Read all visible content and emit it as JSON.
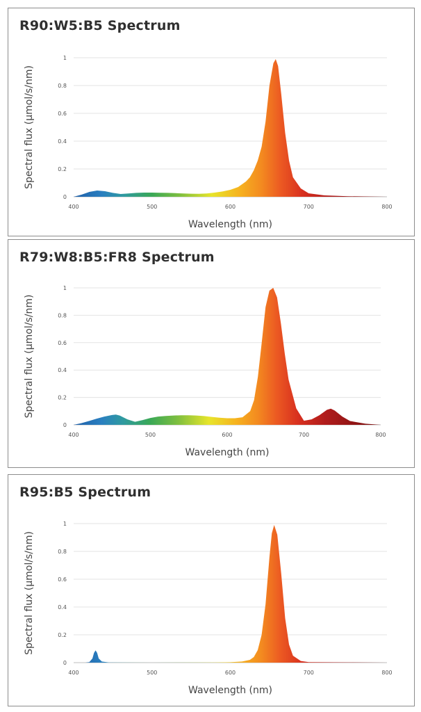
{
  "chart_data": [
    {
      "type": "area",
      "title": "R90:W5:B5 Spectrum",
      "xlabel": "Wavelength (nm)",
      "ylabel": "Spectral flux (μmol/s/nm)",
      "xlim": [
        400,
        800
      ],
      "ylim": [
        0,
        1
      ],
      "x_ticks": [
        "400",
        "500",
        "600",
        "700",
        "800"
      ],
      "y_ticks": [
        "0",
        "0.2",
        "0.4",
        "0.6",
        "0.8",
        "1"
      ],
      "grid": true,
      "x": [
        400,
        410,
        420,
        430,
        440,
        450,
        460,
        470,
        480,
        490,
        500,
        510,
        520,
        530,
        540,
        550,
        560,
        570,
        580,
        590,
        600,
        610,
        620,
        625,
        630,
        635,
        640,
        645,
        650,
        655,
        658,
        661,
        665,
        670,
        675,
        680,
        690,
        700,
        720,
        750,
        800
      ],
      "y": [
        0.0,
        0.015,
        0.035,
        0.045,
        0.04,
        0.028,
        0.02,
        0.024,
        0.028,
        0.03,
        0.03,
        0.029,
        0.028,
        0.026,
        0.024,
        0.022,
        0.021,
        0.024,
        0.03,
        0.038,
        0.05,
        0.07,
        0.11,
        0.14,
        0.19,
        0.26,
        0.36,
        0.54,
        0.8,
        0.96,
        0.99,
        0.94,
        0.74,
        0.46,
        0.26,
        0.14,
        0.06,
        0.025,
        0.01,
        0.004,
        0.0
      ]
    },
    {
      "type": "area",
      "title": "R79:W8:B5:FR8 Spectrum",
      "xlabel": "Wavelength (nm)",
      "ylabel": "Spectral flux (μmol/s/nm)",
      "xlim": [
        400,
        800
      ],
      "ylim": [
        0,
        1
      ],
      "x_ticks": [
        "400",
        "500",
        "600",
        "700",
        "800"
      ],
      "y_ticks": [
        "0",
        "0.2",
        "0.4",
        "0.6",
        "0.8",
        "1"
      ],
      "grid": true,
      "x": [
        400,
        410,
        420,
        430,
        440,
        450,
        455,
        460,
        470,
        480,
        490,
        500,
        510,
        520,
        530,
        540,
        550,
        560,
        570,
        580,
        590,
        600,
        610,
        620,
        630,
        635,
        640,
        645,
        650,
        655,
        660,
        665,
        670,
        675,
        680,
        690,
        700,
        710,
        720,
        730,
        735,
        740,
        750,
        760,
        780,
        800
      ],
      "y": [
        0.0,
        0.012,
        0.028,
        0.045,
        0.06,
        0.072,
        0.075,
        0.068,
        0.04,
        0.022,
        0.035,
        0.05,
        0.06,
        0.065,
        0.068,
        0.07,
        0.07,
        0.068,
        0.064,
        0.058,
        0.052,
        0.048,
        0.048,
        0.055,
        0.1,
        0.18,
        0.35,
        0.6,
        0.86,
        0.98,
        1.0,
        0.93,
        0.74,
        0.52,
        0.33,
        0.12,
        0.03,
        0.04,
        0.07,
        0.11,
        0.118,
        0.105,
        0.06,
        0.028,
        0.008,
        0.0
      ]
    },
    {
      "type": "area",
      "title": "R95:B5 Spectrum",
      "xlabel": "Wavelength (nm)",
      "ylabel": "Spectral flux (μmol/s/nm)",
      "xlim": [
        400,
        800
      ],
      "ylim": [
        0,
        1
      ],
      "x_ticks": [
        "400",
        "500",
        "600",
        "700",
        "800"
      ],
      "y_ticks": [
        "0",
        "0.2",
        "0.4",
        "0.6",
        "0.8",
        "1"
      ],
      "grid": true,
      "x": [
        400,
        415,
        420,
        424,
        426,
        428,
        430,
        432,
        436,
        445,
        500,
        580,
        600,
        615,
        625,
        630,
        635,
        640,
        645,
        650,
        653,
        656,
        660,
        665,
        670,
        675,
        680,
        690,
        700,
        750,
        800
      ],
      "y": [
        0.0,
        0.0,
        0.004,
        0.03,
        0.07,
        0.088,
        0.07,
        0.03,
        0.008,
        0.001,
        0.0,
        0.001,
        0.003,
        0.008,
        0.02,
        0.04,
        0.09,
        0.2,
        0.42,
        0.76,
        0.93,
        0.99,
        0.92,
        0.64,
        0.32,
        0.13,
        0.05,
        0.012,
        0.004,
        0.002,
        0.0
      ]
    }
  ]
}
